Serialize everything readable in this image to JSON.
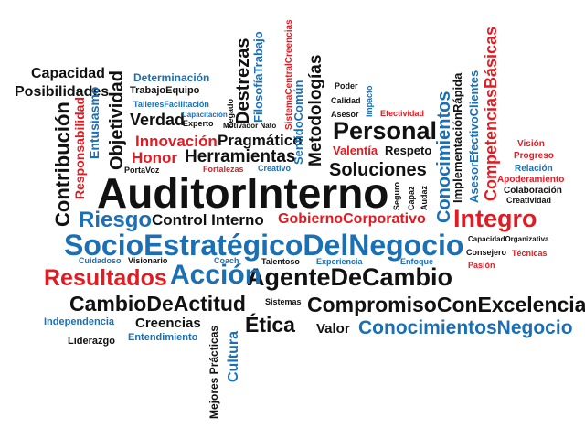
{
  "colors": {
    "black": "#111111",
    "blue": "#1a6fb5",
    "red": "#e11b22"
  },
  "words": [
    {
      "text": "AuditorInterno",
      "color": "black"
    },
    {
      "text": "SocioEstratégicoDelNegocio",
      "color": "blue"
    },
    {
      "text": "AgenteDeCambio",
      "color": "black"
    },
    {
      "text": "Acción",
      "color": "blue"
    },
    {
      "text": "Resultados",
      "color": "red"
    },
    {
      "text": "CambioDeActitud",
      "color": "black"
    },
    {
      "text": "CompromisoConExcelencia",
      "color": "black"
    },
    {
      "text": "ConocimientosNegocio",
      "color": "blue"
    },
    {
      "text": "Integro",
      "color": "red"
    },
    {
      "text": "Riesgo",
      "color": "blue"
    },
    {
      "text": "Control Interno",
      "color": "black"
    },
    {
      "text": "GobiernoCorporativo",
      "color": "red"
    },
    {
      "text": "Personal",
      "color": "black"
    },
    {
      "text": "Soluciones",
      "color": "black"
    },
    {
      "text": "Herramientas",
      "color": "black"
    },
    {
      "text": "Pragmático",
      "color": "black"
    },
    {
      "text": "Innovación",
      "color": "red"
    },
    {
      "text": "Honor",
      "color": "red"
    },
    {
      "text": "Verdad",
      "color": "black"
    },
    {
      "text": "Capacidad",
      "color": "black"
    },
    {
      "text": "Posibilidades",
      "color": "black"
    },
    {
      "text": "Determinación",
      "color": "blue"
    },
    {
      "text": "TrabajoEquipo",
      "color": "black"
    },
    {
      "text": "TalleresFacilitación",
      "color": "blue"
    },
    {
      "text": "Capacitación",
      "color": "blue"
    },
    {
      "text": "Experto",
      "color": "black"
    },
    {
      "text": "Motivador Nato",
      "color": "black"
    },
    {
      "text": "Legado",
      "color": "black"
    },
    {
      "text": "Objetividad",
      "color": "black"
    },
    {
      "text": "Contribución",
      "color": "black"
    },
    {
      "text": "Responsabilidad",
      "color": "red"
    },
    {
      "text": "Entusiasmo",
      "color": "blue"
    },
    {
      "text": "Destrezas",
      "color": "black"
    },
    {
      "text": "FilosofíaTrabajo",
      "color": "blue"
    },
    {
      "text": "SistemaCentralCreencias",
      "color": "red"
    },
    {
      "text": "SentidoComún",
      "color": "blue"
    },
    {
      "text": "Metodologías",
      "color": "black"
    },
    {
      "text": "Poder",
      "color": "black"
    },
    {
      "text": "Calidad",
      "color": "black"
    },
    {
      "text": "Asesor",
      "color": "black"
    },
    {
      "text": "Impacto",
      "color": "blue"
    },
    {
      "text": "Efectividad",
      "color": "red"
    },
    {
      "text": "Valentía",
      "color": "red"
    },
    {
      "text": "Respeto",
      "color": "black"
    },
    {
      "text": "Conocimientos",
      "color": "blue"
    },
    {
      "text": "ImplementaciónRápida",
      "color": "black"
    },
    {
      "text": "AsesorEfectivoClientes",
      "color": "blue"
    },
    {
      "text": "CompetenciasBásicas",
      "color": "red"
    },
    {
      "text": "Visión",
      "color": "red"
    },
    {
      "text": "Progreso",
      "color": "red"
    },
    {
      "text": "Relación",
      "color": "blue"
    },
    {
      "text": "Apoderamiento",
      "color": "red"
    },
    {
      "text": "Colaboración",
      "color": "black"
    },
    {
      "text": "Creatividad",
      "color": "black"
    },
    {
      "text": "PortaVoz",
      "color": "black"
    },
    {
      "text": "Fortalezas",
      "color": "red"
    },
    {
      "text": "Creativo",
      "color": "blue"
    },
    {
      "text": "Seguro",
      "color": "black"
    },
    {
      "text": "Capaz",
      "color": "black"
    },
    {
      "text": "Audaz",
      "color": "black"
    },
    {
      "text": "Enfoque",
      "color": "blue"
    },
    {
      "text": "CapacidadOrganizativa",
      "color": "black"
    },
    {
      "text": "Consejero",
      "color": "black"
    },
    {
      "text": "Técnicas",
      "color": "red"
    },
    {
      "text": "Pasión",
      "color": "red"
    },
    {
      "text": "Experiencia",
      "color": "blue"
    },
    {
      "text": "Talentoso",
      "color": "black"
    },
    {
      "text": "Cuidadoso",
      "color": "blue"
    },
    {
      "text": "Visionario",
      "color": "black"
    },
    {
      "text": "Coach",
      "color": "blue"
    },
    {
      "text": "Sistemas",
      "color": "black"
    },
    {
      "text": "Independencia",
      "color": "blue"
    },
    {
      "text": "Creencias",
      "color": "black"
    },
    {
      "text": "Entendimiento",
      "color": "blue"
    },
    {
      "text": "Liderazgo",
      "color": "black"
    },
    {
      "text": "Ética",
      "color": "black"
    },
    {
      "text": "Valor",
      "color": "black"
    },
    {
      "text": "Cultura",
      "color": "blue"
    },
    {
      "text": "Mejores Prácticas",
      "color": "black"
    }
  ]
}
